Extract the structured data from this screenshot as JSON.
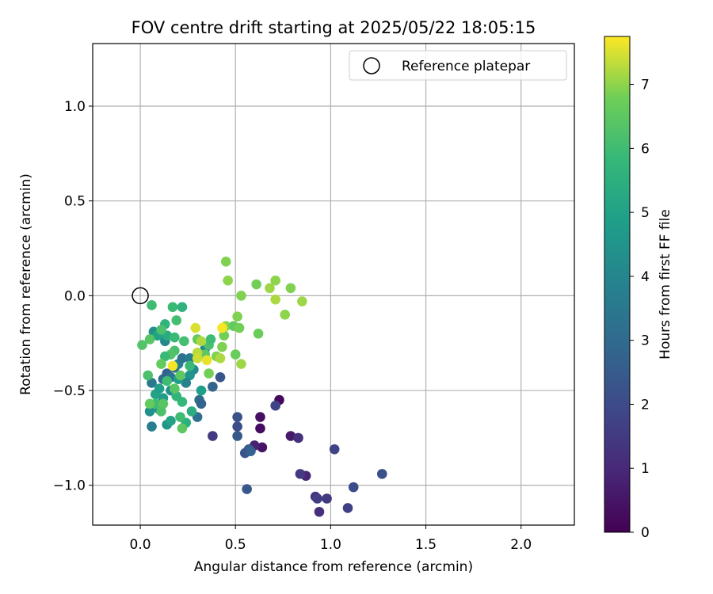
{
  "chart_data": {
    "type": "scatter",
    "title": "FOV centre drift starting at 2025/05/22 18:05:15",
    "xlabel": "Angular distance from reference (arcmin)",
    "ylabel": "Rotation from reference (arcmin)",
    "colorbar_label": "Hours from first FF file",
    "xlim": [
      -0.25,
      2.28
    ],
    "ylim": [
      -1.21,
      1.33
    ],
    "x_ticks": [
      0.0,
      0.5,
      1.0,
      1.5,
      2.0
    ],
    "x_tick_labels": [
      "0.0",
      "0.5",
      "1.0",
      "1.5",
      "2.0"
    ],
    "y_ticks": [
      -1.0,
      -0.5,
      0.0,
      0.5,
      1.0
    ],
    "y_tick_labels": [
      "−1.0",
      "−0.5",
      "0.0",
      "0.5",
      "1.0"
    ],
    "colorbar_range": [
      0,
      7.75
    ],
    "colorbar_ticks": [
      0,
      1,
      2,
      3,
      4,
      5,
      6,
      7
    ],
    "colorbar_tick_labels": [
      "0",
      "1",
      "2",
      "3",
      "4",
      "5",
      "6",
      "7"
    ],
    "colormap": "viridis",
    "grid": true,
    "legend": {
      "position": "top-right",
      "entries": [
        "Reference platepar"
      ]
    },
    "reference_point": {
      "x": 0.0,
      "y": 0.0,
      "label": "Reference platepar"
    },
    "series": [
      {
        "points": [
          [
            0.73,
            -0.55,
            0.2
          ],
          [
            0.63,
            -0.64,
            0.4
          ],
          [
            0.63,
            -0.7,
            0.3
          ],
          [
            0.64,
            -0.8,
            0.5
          ],
          [
            0.6,
            -0.79,
            0.8
          ],
          [
            0.79,
            -0.74,
            0.6
          ],
          [
            0.83,
            -0.75,
            1.2
          ],
          [
            0.87,
            -0.95,
            0.9
          ],
          [
            0.84,
            -0.94,
            1.5
          ],
          [
            0.92,
            -1.06,
            1.3
          ],
          [
            0.93,
            -1.07,
            1.6
          ],
          [
            0.94,
            -1.14,
            1.2
          ],
          [
            0.98,
            -1.07,
            1.5
          ],
          [
            1.02,
            -0.81,
            1.8
          ],
          [
            1.09,
            -1.12,
            1.7
          ],
          [
            1.12,
            -1.01,
            2.0
          ],
          [
            1.27,
            -0.94,
            2.2
          ],
          [
            0.56,
            -1.02,
            2.4
          ],
          [
            0.57,
            -0.81,
            2.5
          ],
          [
            0.55,
            -0.83,
            2.3
          ],
          [
            0.58,
            -0.82,
            2.7
          ],
          [
            0.51,
            -0.64,
            2.2
          ],
          [
            0.51,
            -0.69,
            2.1
          ],
          [
            0.51,
            -0.74,
            2.4
          ],
          [
            0.38,
            -0.74,
            1.5
          ],
          [
            0.71,
            -0.58,
            1.8
          ],
          [
            0.42,
            -0.43,
            2.3
          ],
          [
            0.38,
            -0.48,
            2.8
          ],
          [
            0.31,
            -0.55,
            3.0
          ],
          [
            0.32,
            -0.57,
            2.8
          ],
          [
            0.3,
            -0.64,
            3.2
          ],
          [
            0.06,
            -0.69,
            3.7
          ],
          [
            0.1,
            -0.6,
            4.2
          ],
          [
            0.05,
            -0.61,
            4.4
          ],
          [
            0.06,
            -0.46,
            3.5
          ],
          [
            0.12,
            -0.44,
            3.1
          ],
          [
            0.14,
            -0.41,
            2.7
          ],
          [
            0.16,
            -0.43,
            3.4
          ],
          [
            0.18,
            -0.38,
            3.0
          ],
          [
            0.2,
            -0.36,
            3.8
          ],
          [
            0.22,
            -0.33,
            3.3
          ],
          [
            0.26,
            -0.33,
            3.6
          ],
          [
            0.28,
            -0.39,
            4.2
          ],
          [
            0.31,
            -0.32,
            4.6
          ],
          [
            0.34,
            -0.28,
            4.0
          ],
          [
            0.26,
            -0.42,
            4.5
          ],
          [
            0.24,
            -0.46,
            3.9
          ],
          [
            0.2,
            -0.44,
            4.8
          ],
          [
            0.16,
            -0.5,
            4.3
          ],
          [
            0.12,
            -0.54,
            4.7
          ],
          [
            0.08,
            -0.52,
            5.0
          ],
          [
            0.1,
            -0.49,
            4.9
          ],
          [
            0.14,
            -0.68,
            4.6
          ],
          [
            0.16,
            -0.66,
            5.0
          ],
          [
            0.24,
            -0.67,
            5.5
          ],
          [
            0.27,
            -0.61,
            5.4
          ],
          [
            0.32,
            -0.5,
            4.9
          ],
          [
            0.22,
            -0.56,
            5.8
          ],
          [
            0.19,
            -0.53,
            5.7
          ],
          [
            0.13,
            -0.24,
            4.1
          ],
          [
            0.07,
            -0.19,
            4.4
          ],
          [
            0.09,
            -0.21,
            5.0
          ],
          [
            0.14,
            -0.21,
            5.3
          ],
          [
            0.13,
            -0.15,
            5.6
          ],
          [
            0.18,
            -0.22,
            5.9
          ],
          [
            0.17,
            -0.06,
            5.9
          ],
          [
            0.22,
            -0.06,
            5.6
          ],
          [
            0.06,
            -0.05,
            6.0
          ],
          [
            0.19,
            -0.13,
            6.1
          ],
          [
            0.11,
            -0.18,
            6.2
          ],
          [
            0.01,
            -0.26,
            6.3
          ],
          [
            0.05,
            -0.23,
            6.4
          ],
          [
            0.04,
            -0.42,
            6.2
          ],
          [
            0.08,
            -0.57,
            6.0
          ],
          [
            0.11,
            -0.61,
            6.2
          ],
          [
            0.05,
            -0.57,
            6.6
          ],
          [
            0.12,
            -0.57,
            6.4
          ],
          [
            0.21,
            -0.64,
            6.0
          ],
          [
            0.22,
            -0.7,
            6.5
          ],
          [
            0.23,
            -0.24,
            6.1
          ],
          [
            0.18,
            -0.29,
            6.2
          ],
          [
            0.16,
            -0.31,
            6.3
          ],
          [
            0.13,
            -0.32,
            5.9
          ],
          [
            0.11,
            -0.36,
            6.6
          ],
          [
            0.14,
            -0.45,
            6.0
          ],
          [
            0.18,
            -0.49,
            6.4
          ],
          [
            0.21,
            -0.42,
            6.5
          ],
          [
            0.26,
            -0.37,
            5.9
          ],
          [
            0.3,
            -0.23,
            6.6
          ],
          [
            0.36,
            -0.26,
            6.2
          ],
          [
            0.37,
            -0.23,
            6.0
          ],
          [
            0.34,
            -0.31,
            6.5
          ],
          [
            0.36,
            -0.41,
            6.8
          ],
          [
            0.4,
            -0.32,
            6.9
          ],
          [
            0.42,
            -0.33,
            7.2
          ],
          [
            0.45,
            -0.16,
            7.0
          ],
          [
            0.44,
            -0.21,
            6.8
          ],
          [
            0.43,
            -0.27,
            6.9
          ],
          [
            0.49,
            -0.16,
            6.6
          ],
          [
            0.52,
            -0.17,
            6.8
          ],
          [
            0.51,
            -0.11,
            6.9
          ],
          [
            0.53,
            -0.36,
            7.1
          ],
          [
            0.5,
            -0.31,
            6.7
          ],
          [
            0.45,
            0.18,
            6.9
          ],
          [
            0.46,
            0.08,
            7.0
          ],
          [
            0.53,
            0.0,
            6.9
          ],
          [
            0.61,
            0.06,
            6.8
          ],
          [
            0.62,
            -0.2,
            6.7
          ],
          [
            0.68,
            0.04,
            7.1
          ],
          [
            0.71,
            0.08,
            7.0
          ],
          [
            0.71,
            -0.02,
            7.2
          ],
          [
            0.76,
            -0.1,
            7.0
          ],
          [
            0.79,
            0.04,
            6.9
          ],
          [
            0.85,
            -0.03,
            7.1
          ],
          [
            0.29,
            -0.17,
            7.5
          ],
          [
            0.3,
            -0.3,
            7.3
          ],
          [
            0.3,
            -0.33,
            7.4
          ],
          [
            0.32,
            -0.24,
            7.2
          ],
          [
            0.17,
            -0.37,
            7.7
          ],
          [
            0.35,
            -0.34,
            7.6
          ],
          [
            0.43,
            -0.17,
            7.7
          ]
        ]
      }
    ]
  }
}
